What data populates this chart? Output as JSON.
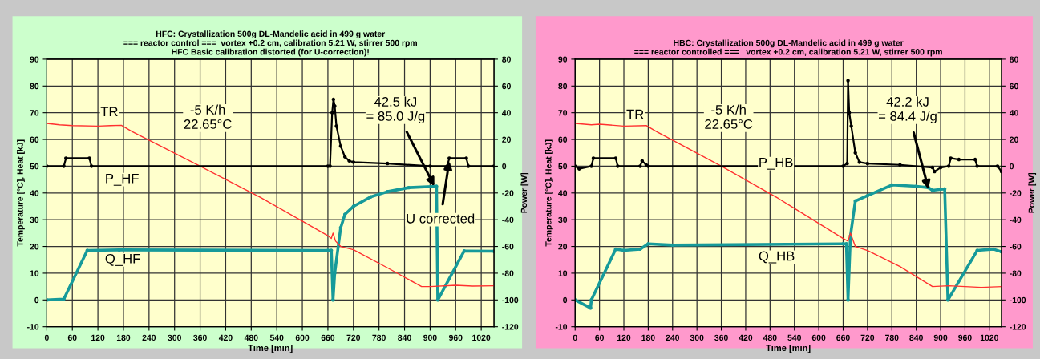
{
  "chart_data": [
    {
      "type": "line",
      "title": "HFC: Crystallization 500g DL-Mandelic acid in 499 g water\n=== reactor control ===  vortex +0.2 cm, calibration 5.21 W, stirrer 500 rpm\nHFC Basic calibration distorted (for U-correction)!",
      "xlabel": "Time [min]",
      "ylabel": "Temperature [°C], Heat [kJ]",
      "y2label": "Power [W]",
      "xlim": [
        0,
        1050
      ],
      "xticks": [
        0,
        60,
        120,
        180,
        240,
        300,
        360,
        420,
        480,
        540,
        600,
        660,
        720,
        780,
        840,
        900,
        960,
        1020
      ],
      "ylim": [
        -10,
        90
      ],
      "yticks": [
        -10,
        0,
        10,
        20,
        30,
        40,
        50,
        60,
        70,
        80,
        90
      ],
      "y2lim": [
        -120,
        80
      ],
      "y2ticks": [
        -120,
        -100,
        -80,
        -60,
        -40,
        -20,
        0,
        20,
        40,
        60,
        80
      ],
      "grid": true,
      "legend": false,
      "annotations": [
        "-5 K/h\n22.65°C",
        {
          "text": "42.5 kJ\n= 85.0 J/g",
          "x": 910,
          "y": 42.5
        },
        {
          "text": "U corrected",
          "x": 945,
          "y": 52
        }
      ],
      "series": [
        {
          "name": "TR",
          "color": "#ff3030",
          "marker": "none",
          "x": [
            0,
            30,
            60,
            120,
            150,
            175,
            200,
            360,
            500,
            660,
            668,
            672,
            678,
            690,
            720,
            800,
            880,
            900,
            960,
            1000,
            1050
          ],
          "values": [
            66,
            65.5,
            65.2,
            65,
            65.2,
            65.3,
            63,
            50,
            38.5,
            24,
            23,
            25,
            22,
            20,
            18.8,
            12,
            5,
            5,
            5.5,
            5.2,
            5.3
          ]
        },
        {
          "name": "P_HF",
          "color": "#000000",
          "marker": "circle",
          "axis": "y2",
          "x": [
            0,
            40,
            45,
            100,
            105,
            660,
            665,
            670,
            673,
            676,
            680,
            690,
            700,
            710,
            720,
            800,
            900,
            940,
            945,
            985,
            990,
            1050
          ],
          "values": [
            0,
            0,
            6,
            6,
            0,
            0,
            0,
            40,
            50,
            45,
            30,
            15,
            7,
            4,
            3,
            2,
            0,
            0,
            6,
            6,
            0,
            0
          ]
        },
        {
          "name": "Q_HF",
          "color": "#169a9a",
          "marker": "circle",
          "x": [
            0,
            40,
            95,
            170,
            660,
            668,
            672,
            676,
            690,
            700,
            720,
            760,
            800,
            850,
            915,
            918,
            980,
            1050
          ],
          "values": [
            0,
            0.3,
            18.5,
            18.7,
            18.5,
            18.5,
            0,
            10,
            27,
            32,
            35,
            38.5,
            40.5,
            42,
            42.5,
            0,
            18.3,
            18.2
          ]
        }
      ]
    },
    {
      "type": "line",
      "title": "HBC: Crystallization 500g DL-Mandelic acid in 499 g water\n=== reactor controlled ===   vortex +0.2 cm, calibration 5.21 W, stirrer 500 rpm",
      "xlabel": "Time [min]",
      "ylabel": "Temperature [°C], Heat [kJ]",
      "y2label": "Power [W]",
      "xlim": [
        0,
        1050
      ],
      "xticks": [
        0,
        60,
        120,
        180,
        240,
        300,
        360,
        420,
        480,
        540,
        600,
        660,
        720,
        780,
        840,
        900,
        960,
        1020
      ],
      "ylim": [
        -10,
        90
      ],
      "yticks": [
        -10,
        0,
        10,
        20,
        30,
        40,
        50,
        60,
        70,
        80,
        90
      ],
      "y2lim": [
        -120,
        80
      ],
      "y2ticks": [
        -120,
        -100,
        -80,
        -60,
        -40,
        -20,
        0,
        20,
        40,
        60,
        80
      ],
      "grid": true,
      "legend": false,
      "annotations": [
        "-5 K/h\n22.65°C",
        {
          "text": "42.2 kJ\n= 84.4 J/g",
          "x": 870,
          "y": 41.5
        }
      ],
      "series": [
        {
          "name": "TR",
          "color": "#ff3030",
          "marker": "none",
          "x": [
            0,
            40,
            60,
            120,
            175,
            200,
            360,
            500,
            660,
            672,
            678,
            690,
            720,
            800,
            880,
            920,
            960,
            1000,
            1050
          ],
          "values": [
            66,
            65.5,
            65.7,
            65,
            65.2,
            63,
            50,
            38,
            23,
            22,
            25,
            20,
            18.5,
            12.5,
            5,
            5.3,
            5,
            4.7,
            5
          ]
        },
        {
          "name": "P_HB",
          "color": "#000000",
          "marker": "circle",
          "axis": "y2",
          "x": [
            0,
            10,
            40,
            45,
            100,
            105,
            160,
            165,
            175,
            180,
            660,
            670,
            672,
            675,
            680,
            690,
            700,
            720,
            800,
            880,
            885,
            900,
            920,
            925,
            945,
            985,
            990,
            1040,
            1050
          ],
          "values": [
            0,
            -2,
            0,
            6,
            6,
            0,
            0,
            4,
            1,
            0,
            0,
            2,
            64,
            40,
            30,
            10,
            3,
            2,
            1,
            -1,
            -4,
            -1,
            0,
            6,
            5,
            5,
            0,
            0,
            -4
          ]
        },
        {
          "name": "Q_HB",
          "color": "#169a9a",
          "marker": "circle",
          "x": [
            0,
            38,
            40,
            100,
            120,
            160,
            180,
            240,
            660,
            668,
            672,
            678,
            690,
            720,
            780,
            840,
            870,
            880,
            910,
            918,
            990,
            1030,
            1050
          ],
          "values": [
            0,
            -3,
            0,
            19,
            18.5,
            19,
            21,
            20.5,
            21,
            21,
            0,
            24,
            37,
            39,
            43,
            42.5,
            42,
            41,
            41.5,
            0,
            18.5,
            19,
            18
          ]
        }
      ]
    }
  ]
}
